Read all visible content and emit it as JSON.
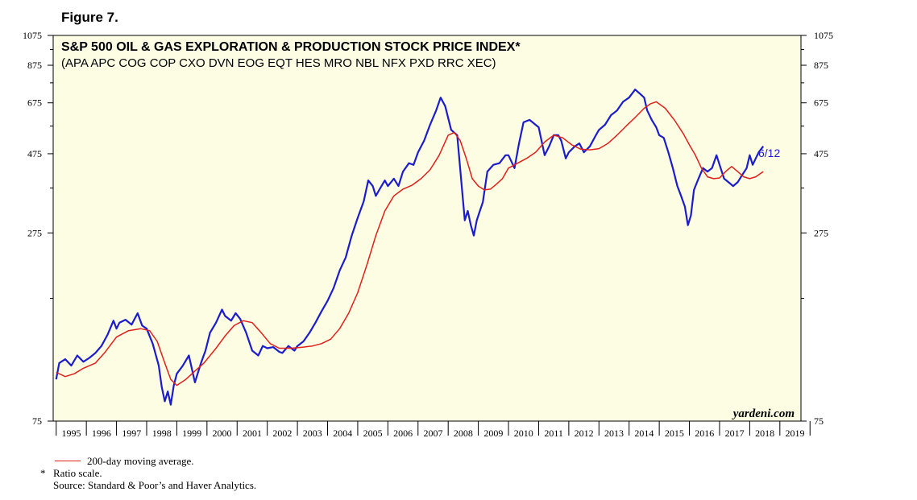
{
  "figure_label": "Figure 7.",
  "chart_data": {
    "type": "line",
    "scale": "log",
    "title": "S&P 500 OIL & GAS EXPLORATION & PRODUCTION STOCK PRICE INDEX*",
    "subtitle": "(APA APC COG COP CXO DVN EOG EQT HES MRO NBL NFX PXD RRC XEC)",
    "ylim": [
      75,
      1075
    ],
    "xlim": [
      1994.9,
      2019.7
    ],
    "y_ticks": [
      75,
      275,
      475,
      675,
      875,
      1075
    ],
    "y_tick_labels": [
      "75",
      "275",
      "475",
      "675",
      "875",
      "1075"
    ],
    "x_tick_labels": [
      "1995",
      "1996",
      "1997",
      "1998",
      "1999",
      "2000",
      "2001",
      "2002",
      "2003",
      "2004",
      "2005",
      "2006",
      "2007",
      "2008",
      "2009",
      "2010",
      "2011",
      "2012",
      "2013",
      "2014",
      "2015",
      "2016",
      "2017",
      "2018",
      "2019"
    ],
    "x_tick_years": [
      1995,
      1996,
      1997,
      1998,
      1999,
      2000,
      2001,
      2002,
      2003,
      2004,
      2005,
      2006,
      2007,
      2008,
      2009,
      2010,
      2011,
      2012,
      2013,
      2014,
      2015,
      2016,
      2017,
      2018,
      2019
    ],
    "watermark": "yardeni.com",
    "latest_label": "6/12",
    "colors": {
      "background": "#fdfde3",
      "index": "#1c1ccf",
      "moving_average": "#e0201b",
      "latest_label": "#1c1ccf"
    },
    "series": [
      {
        "name": "Index",
        "x": [
          1995.0,
          1995.1,
          1995.3,
          1995.5,
          1995.7,
          1995.9,
          1996.1,
          1996.3,
          1996.5,
          1996.7,
          1996.9,
          1997.0,
          1997.1,
          1997.3,
          1997.5,
          1997.7,
          1997.85,
          1998.0,
          1998.2,
          1998.4,
          1998.5,
          1998.6,
          1998.7,
          1998.8,
          1998.9,
          1999.0,
          1999.2,
          1999.4,
          1999.6,
          1999.8,
          1999.95,
          2000.1,
          2000.3,
          2000.5,
          2000.6,
          2000.8,
          2000.95,
          2001.1,
          2001.3,
          2001.5,
          2001.7,
          2001.85,
          2002.0,
          2002.2,
          2002.4,
          2002.5,
          2002.7,
          2002.9,
          2003.0,
          2003.2,
          2003.4,
          2003.6,
          2003.8,
          2004.0,
          2004.2,
          2004.4,
          2004.6,
          2004.8,
          2005.0,
          2005.2,
          2005.35,
          2005.5,
          2005.6,
          2005.75,
          2005.9,
          2006.0,
          2006.2,
          2006.35,
          2006.5,
          2006.7,
          2006.85,
          2007.0,
          2007.2,
          2007.4,
          2007.6,
          2007.75,
          2007.9,
          2008.1,
          2008.3,
          2008.45,
          2008.55,
          2008.65,
          2008.75,
          2008.85,
          2008.95,
          2009.05,
          2009.15,
          2009.3,
          2009.5,
          2009.7,
          2009.9,
          2010.0,
          2010.2,
          2010.35,
          2010.5,
          2010.7,
          2010.9,
          2011.0,
          2011.2,
          2011.35,
          2011.5,
          2011.65,
          2011.75,
          2011.9,
          2012.0,
          2012.2,
          2012.35,
          2012.5,
          2012.7,
          2012.9,
          2013.0,
          2013.2,
          2013.4,
          2013.6,
          2013.8,
          2014.0,
          2014.2,
          2014.35,
          2014.5,
          2014.6,
          2014.75,
          2014.9,
          2015.0,
          2015.15,
          2015.3,
          2015.45,
          2015.6,
          2015.7,
          2015.85,
          2015.95,
          2016.05,
          2016.15,
          2016.3,
          2016.45,
          2016.6,
          2016.75,
          2016.9,
          2017.0,
          2017.15,
          2017.3,
          2017.45,
          2017.6,
          2017.75,
          2017.9,
          2018.0,
          2018.1,
          2018.2,
          2018.3,
          2018.45
        ],
        "values": [
          100,
          112,
          115,
          110,
          118,
          113,
          116,
          120,
          126,
          136,
          150,
          142,
          148,
          151,
          146,
          158,
          145,
          142,
          128,
          110,
          95,
          86,
          92,
          84,
          96,
          104,
          110,
          118,
          98,
          112,
          122,
          138,
          148,
          162,
          155,
          150,
          158,
          152,
          138,
          122,
          118,
          126,
          124,
          125,
          121,
          120,
          126,
          122,
          126,
          130,
          138,
          148,
          160,
          172,
          188,
          212,
          232,
          270,
          305,
          342,
          395,
          380,
          355,
          375,
          395,
          380,
          400,
          380,
          420,
          445,
          440,
          480,
          520,
          580,
          640,
          700,
          660,
          560,
          540,
          380,
          300,
          320,
          290,
          270,
          300,
          320,
          340,
          420,
          440,
          445,
          470,
          470,
          430,
          510,
          590,
          600,
          580,
          570,
          470,
          500,
          540,
          540,
          520,
          460,
          480,
          500,
          510,
          480,
          500,
          540,
          560,
          580,
          620,
          640,
          680,
          700,
          740,
          720,
          700,
          640,
          600,
          570,
          540,
          530,
          480,
          430,
          380,
          360,
          330,
          290,
          310,
          370,
          400,
          430,
          420,
          430,
          470,
          440,
          400,
          390,
          380,
          390,
          410,
          430,
          470,
          440,
          460,
          480,
          500
        ]
      },
      {
        "name": "200-day moving average.",
        "x": [
          1995.0,
          1995.3,
          1995.6,
          1995.9,
          1996.3,
          1996.6,
          1997.0,
          1997.4,
          1997.8,
          1998.1,
          1998.35,
          1998.6,
          1998.8,
          1999.0,
          1999.3,
          1999.6,
          1999.9,
          2000.3,
          2000.6,
          2000.9,
          2001.2,
          2001.5,
          2001.8,
          2002.1,
          2002.4,
          2002.8,
          2003.2,
          2003.5,
          2003.8,
          2004.1,
          2004.4,
          2004.7,
          2005.0,
          2005.3,
          2005.6,
          2005.9,
          2006.2,
          2006.5,
          2006.8,
          2007.1,
          2007.4,
          2007.7,
          2008.0,
          2008.2,
          2008.4,
          2008.6,
          2008.8,
          2009.0,
          2009.2,
          2009.4,
          2009.6,
          2009.8,
          2010.0,
          2010.3,
          2010.6,
          2010.9,
          2011.2,
          2011.5,
          2011.8,
          2012.1,
          2012.4,
          2012.7,
          2013.0,
          2013.3,
          2013.6,
          2013.9,
          2014.2,
          2014.5,
          2014.7,
          2014.9,
          2015.2,
          2015.5,
          2015.8,
          2016.0,
          2016.2,
          2016.4,
          2016.6,
          2016.8,
          2017.0,
          2017.2,
          2017.4,
          2017.6,
          2017.8,
          2018.0,
          2018.2,
          2018.45
        ],
        "values": [
          105,
          102,
          104,
          108,
          112,
          120,
          134,
          140,
          142,
          140,
          130,
          112,
          100,
          96,
          100,
          106,
          112,
          124,
          135,
          145,
          150,
          148,
          138,
          128,
          124,
          124,
          125,
          126,
          128,
          132,
          142,
          158,
          182,
          220,
          270,
          320,
          355,
          372,
          382,
          400,
          425,
          470,
          540,
          550,
          520,
          460,
          400,
          380,
          370,
          372,
          385,
          400,
          430,
          445,
          460,
          480,
          515,
          540,
          530,
          505,
          490,
          488,
          492,
          510,
          540,
          575,
          610,
          650,
          670,
          680,
          650,
          600,
          545,
          505,
          470,
          430,
          405,
          400,
          402,
          420,
          435,
          420,
          405,
          400,
          405,
          420
        ]
      }
    ]
  },
  "legend": {
    "ma_label": "200-day moving average.",
    "star": "*",
    "note": "Ratio scale.",
    "source": "Source: Standard & Poor’s and Haver Analytics."
  }
}
